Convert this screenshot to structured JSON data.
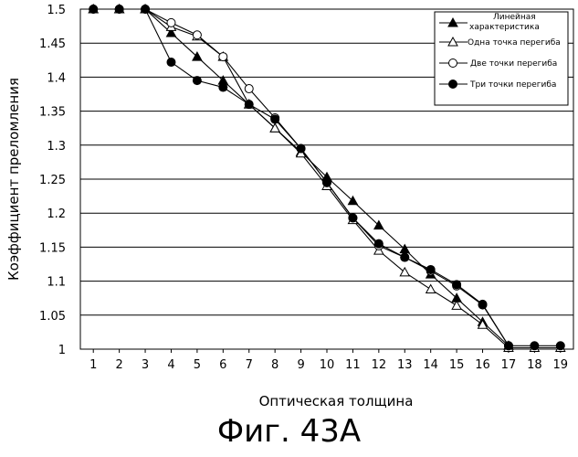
{
  "chart_data": {
    "type": "line",
    "xlabel": "Оптическая толщина",
    "ylabel": "Коэффициент преломления",
    "x": [
      1,
      2,
      3,
      4,
      5,
      6,
      7,
      8,
      9,
      10,
      11,
      12,
      13,
      14,
      15,
      16,
      17,
      18,
      19
    ],
    "xlim": [
      0.5,
      19.5
    ],
    "ylim": [
      1.0,
      1.5
    ],
    "yticks": [
      "1",
      "1.05",
      "1.1",
      "1.15",
      "1.2",
      "1.25",
      "1.3",
      "1.35",
      "1.4",
      "1.45",
      "1.5"
    ],
    "xticks": [
      "1",
      "2",
      "3",
      "4",
      "5",
      "6",
      "7",
      "8",
      "9",
      "10",
      "11",
      "12",
      "13",
      "14",
      "15",
      "16",
      "17",
      "18",
      "19"
    ],
    "grid": "horizontal",
    "legend_position": "top-right",
    "series": [
      {
        "name": "Линейная характеристика",
        "marker": "filled-triangle",
        "x": [
          1,
          2,
          3,
          4,
          5,
          6,
          7,
          8,
          9,
          10,
          11,
          12,
          13,
          14,
          15,
          16,
          17
        ],
        "values": [
          1.5,
          1.5,
          1.5,
          1.465,
          1.43,
          1.395,
          1.36,
          1.325,
          1.29,
          1.253,
          1.218,
          1.182,
          1.147,
          1.11,
          1.075,
          1.04,
          1.005
        ]
      },
      {
        "name": "Одна точка перегиба",
        "marker": "open-triangle",
        "x": [
          1,
          2,
          3,
          4,
          5,
          6,
          7,
          8,
          9,
          10,
          11,
          12,
          13,
          14,
          15,
          16,
          17,
          18,
          19
        ],
        "values": [
          1.5,
          1.5,
          1.5,
          1.474,
          1.46,
          1.43,
          1.36,
          1.325,
          1.288,
          1.24,
          1.19,
          1.145,
          1.113,
          1.088,
          1.064,
          1.036,
          1.002,
          1.002,
          1.002
        ]
      },
      {
        "name": "Две точки перегиба",
        "marker": "open-circle",
        "x": [
          1,
          2,
          3,
          4,
          5,
          6,
          7,
          8,
          9,
          10,
          11,
          12,
          13,
          14,
          15,
          16,
          17
        ],
        "values": [
          1.5,
          1.5,
          1.5,
          1.48,
          1.462,
          1.43,
          1.383,
          1.34,
          1.295,
          1.245,
          1.193,
          1.152,
          1.135,
          1.115,
          1.093,
          1.065,
          1.005
        ]
      },
      {
        "name": "Три точки перегиба",
        "marker": "filled-circle",
        "x": [
          1,
          2,
          3,
          4,
          5,
          6,
          7,
          8,
          9,
          10,
          11,
          12,
          13,
          14,
          15,
          16,
          17,
          18,
          19
        ],
        "values": [
          1.5,
          1.5,
          1.5,
          1.422,
          1.395,
          1.385,
          1.36,
          1.338,
          1.295,
          1.245,
          1.193,
          1.155,
          1.135,
          1.117,
          1.095,
          1.066,
          1.005,
          1.005,
          1.005
        ]
      }
    ],
    "legend_labels": [
      [
        "Линейная",
        "характеристика"
      ],
      [
        "Одна точка перегиба"
      ],
      [
        "Две точки перегиба"
      ],
      [
        "Три точки перегиба"
      ]
    ]
  },
  "caption": "Фиг. 43А"
}
